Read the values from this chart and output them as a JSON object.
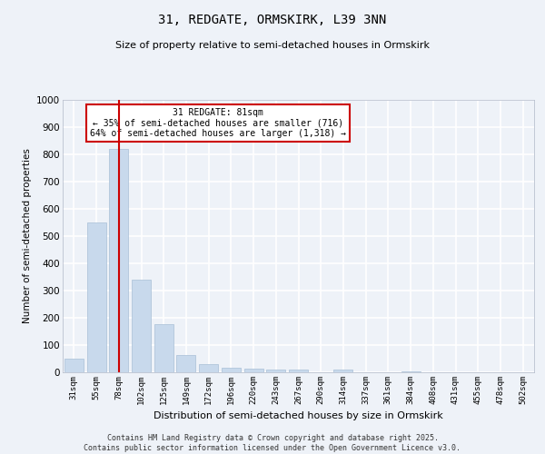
{
  "title": "31, REDGATE, ORMSKIRK, L39 3NN",
  "subtitle": "Size of property relative to semi-detached houses in Ormskirk",
  "xlabel": "Distribution of semi-detached houses by size in Ormskirk",
  "ylabel": "Number of semi-detached properties",
  "categories": [
    "31sqm",
    "55sqm",
    "78sqm",
    "102sqm",
    "125sqm",
    "149sqm",
    "172sqm",
    "196sqm",
    "220sqm",
    "243sqm",
    "267sqm",
    "290sqm",
    "314sqm",
    "337sqm",
    "361sqm",
    "384sqm",
    "408sqm",
    "431sqm",
    "455sqm",
    "478sqm",
    "502sqm"
  ],
  "values": [
    50,
    550,
    820,
    340,
    178,
    65,
    30,
    18,
    13,
    10,
    10,
    0,
    10,
    0,
    0,
    5,
    0,
    0,
    0,
    0,
    0
  ],
  "bar_color": "#c8d9ec",
  "bar_edge_color": "#a8bfd6",
  "vline_x_index": 2,
  "vline_color": "#cc0000",
  "annotation_box_text": "31 REDGATE: 81sqm\n← 35% of semi-detached houses are smaller (716)\n64% of semi-detached houses are larger (1,318) →",
  "annotation_box_color": "#cc0000",
  "ylim": [
    0,
    1000
  ],
  "yticks": [
    0,
    100,
    200,
    300,
    400,
    500,
    600,
    700,
    800,
    900,
    1000
  ],
  "background_color": "#eef2f8",
  "grid_color": "#ffffff",
  "footer_line1": "Contains HM Land Registry data © Crown copyright and database right 2025.",
  "footer_line2": "Contains public sector information licensed under the Open Government Licence v3.0."
}
